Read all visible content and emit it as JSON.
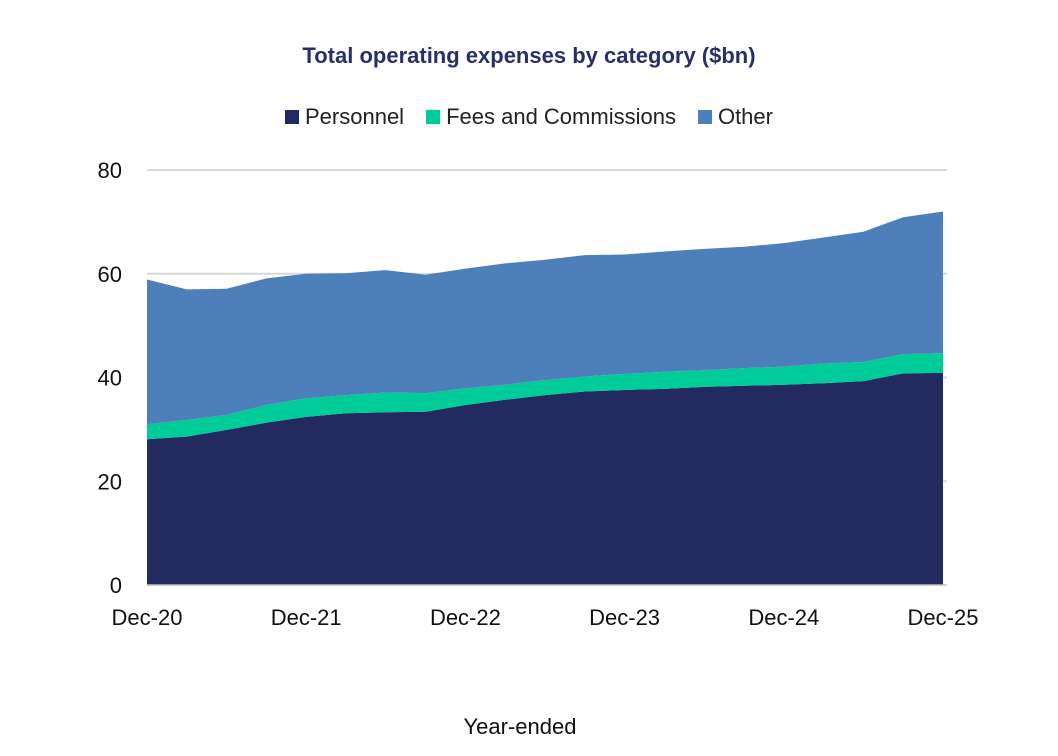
{
  "chart_data": {
    "type": "area",
    "stacked": true,
    "title": "Total operating expenses by category ($bn)",
    "xlabel": "Year-ended",
    "ylabel": "",
    "ylim": [
      0,
      80
    ],
    "yticks": [
      0,
      20,
      40,
      60,
      80
    ],
    "xtick_labels": [
      "Dec-20",
      "Dec-21",
      "Dec-22",
      "Dec-23",
      "Dec-24",
      "Dec-25"
    ],
    "x": [
      "Dec-20",
      "Mar-21",
      "Jun-21",
      "Sep-21",
      "Dec-21",
      "Mar-22",
      "Jun-22",
      "Sep-22",
      "Dec-22",
      "Mar-23",
      "Jun-23",
      "Sep-23",
      "Dec-23",
      "Mar-24",
      "Jun-24",
      "Sep-24",
      "Dec-24",
      "Mar-25",
      "Jun-25",
      "Sep-25",
      "Dec-25"
    ],
    "grid": "horizontal",
    "legend_position": "top",
    "series": [
      {
        "name": "Personnel",
        "color": "#222a60",
        "values": [
          28.1,
          28.6,
          29.9,
          31.3,
          32.4,
          33.1,
          33.3,
          33.4,
          34.7,
          35.7,
          36.6,
          37.3,
          37.6,
          37.8,
          38.2,
          38.4,
          38.6,
          38.9,
          39.3,
          40.8,
          40.9
        ]
      },
      {
        "name": "Fees and Commissions",
        "color": "#00cc99",
        "values": [
          2.9,
          3.2,
          2.9,
          3.4,
          3.6,
          3.5,
          3.8,
          3.6,
          3.2,
          2.9,
          2.9,
          2.9,
          3.1,
          3.3,
          3.2,
          3.4,
          3.5,
          3.8,
          3.7,
          3.7,
          3.8
        ]
      },
      {
        "name": "Other",
        "color": "#4d7fba",
        "values": [
          27.9,
          25.2,
          24.3,
          24.4,
          24.0,
          23.5,
          23.6,
          22.8,
          23.1,
          23.4,
          23.2,
          23.4,
          23.0,
          23.2,
          23.4,
          23.4,
          23.8,
          24.3,
          25.1,
          26.4,
          27.3
        ]
      }
    ]
  }
}
